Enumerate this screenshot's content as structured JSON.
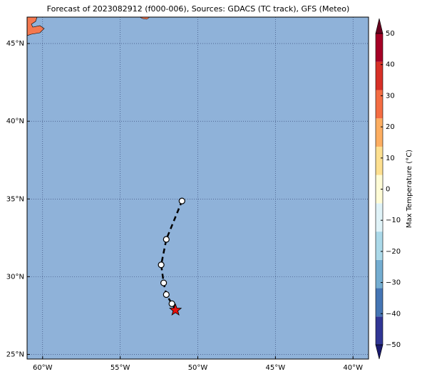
{
  "chart_data": {
    "type": "map",
    "title": "Forecast of 2023082912 (f000-006), Sources: GDACS (TC track), GFS (Meteo)",
    "xlim": [
      -61,
      -39
    ],
    "ylim": [
      24.7,
      46.7
    ],
    "xticks": [
      {
        "value": -60,
        "label": "60°W"
      },
      {
        "value": -55,
        "label": "55°W"
      },
      {
        "value": -50,
        "label": "50°W"
      },
      {
        "value": -45,
        "label": "45°W"
      },
      {
        "value": -40,
        "label": "40°W"
      }
    ],
    "yticks": [
      {
        "value": 25,
        "label": "25°N"
      },
      {
        "value": 30,
        "label": "30°N"
      },
      {
        "value": 35,
        "label": "35°N"
      },
      {
        "value": 40,
        "label": "40°N"
      },
      {
        "value": 45,
        "label": "45°N"
      }
    ],
    "grid": true,
    "ocean_color": "#8fb2d9",
    "x": [
      -51.44,
      -51.67,
      -52.03,
      -52.2,
      -52.36,
      -52.03,
      -51.02
    ],
    "values": [
      27.85,
      28.26,
      28.85,
      29.6,
      30.76,
      32.4,
      34.87
    ],
    "colorbar": {
      "label": "Max Temperature (°C)",
      "clim": [
        -50,
        50
      ],
      "ticks": [
        {
          "value": -50,
          "label": "−50"
        },
        {
          "value": -40,
          "label": "−40"
        },
        {
          "value": -30,
          "label": "−30"
        },
        {
          "value": -20,
          "label": "−20"
        },
        {
          "value": -10,
          "label": "−10"
        },
        0,
        10,
        20,
        30,
        40,
        50
      ],
      "colors": [
        "#1a1a6e",
        "#313695",
        "#4575b4",
        "#74add1",
        "#abd9e9",
        "#e0f3f8",
        "#fffcd6",
        "#fee090",
        "#fdae61",
        "#f46d43",
        "#d73027",
        "#a50026",
        "#67001f"
      ]
    }
  }
}
